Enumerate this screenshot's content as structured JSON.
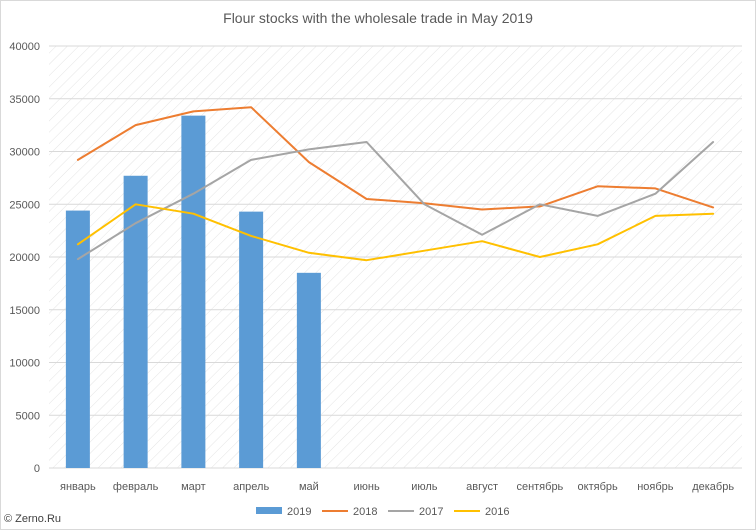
{
  "watermark": "© Zerno.Ru",
  "colors": {
    "2019": "#5b9bd5",
    "2018": "#ed7d31",
    "2017": "#a5a5a5",
    "2016": "#ffc000",
    "grid": "#d9d9d9",
    "text": "#595959"
  },
  "chart_data": {
    "type": "bar+line",
    "title": "Flour stocks with the wholesale trade in May 2019",
    "xlabel": "",
    "ylabel": "",
    "ylim": [
      0,
      40000
    ],
    "yticks": [
      0,
      5000,
      10000,
      15000,
      20000,
      25000,
      30000,
      35000,
      40000
    ],
    "categories": [
      "январь",
      "февраль",
      "март",
      "апрель",
      "май",
      "июнь",
      "июль",
      "август",
      "сентябрь",
      "октябрь",
      "ноябрь",
      "декабрь"
    ],
    "grid": true,
    "gridline_style": "diagonal hatch background with horizontal gridlines",
    "legend_position": "bottom",
    "series": [
      {
        "name": "2019",
        "type": "bar",
        "color": "#5b9bd5",
        "values": [
          24400,
          27700,
          33400,
          24300,
          18500,
          null,
          null,
          null,
          null,
          null,
          null,
          null
        ]
      },
      {
        "name": "2018",
        "type": "line",
        "color": "#ed7d31",
        "values": [
          29200,
          32500,
          33800,
          34200,
          29000,
          25500,
          25100,
          24500,
          24800,
          26700,
          26500,
          24700
        ]
      },
      {
        "name": "2017",
        "type": "line",
        "color": "#a5a5a5",
        "values": [
          19800,
          23200,
          26000,
          29200,
          30200,
          30900,
          25000,
          22100,
          25000,
          23900,
          26000,
          30900
        ]
      },
      {
        "name": "2016",
        "type": "line",
        "color": "#ffc000",
        "values": [
          21200,
          25000,
          24100,
          22000,
          20400,
          19700,
          20600,
          21500,
          20000,
          21200,
          23900,
          24100
        ]
      }
    ]
  }
}
